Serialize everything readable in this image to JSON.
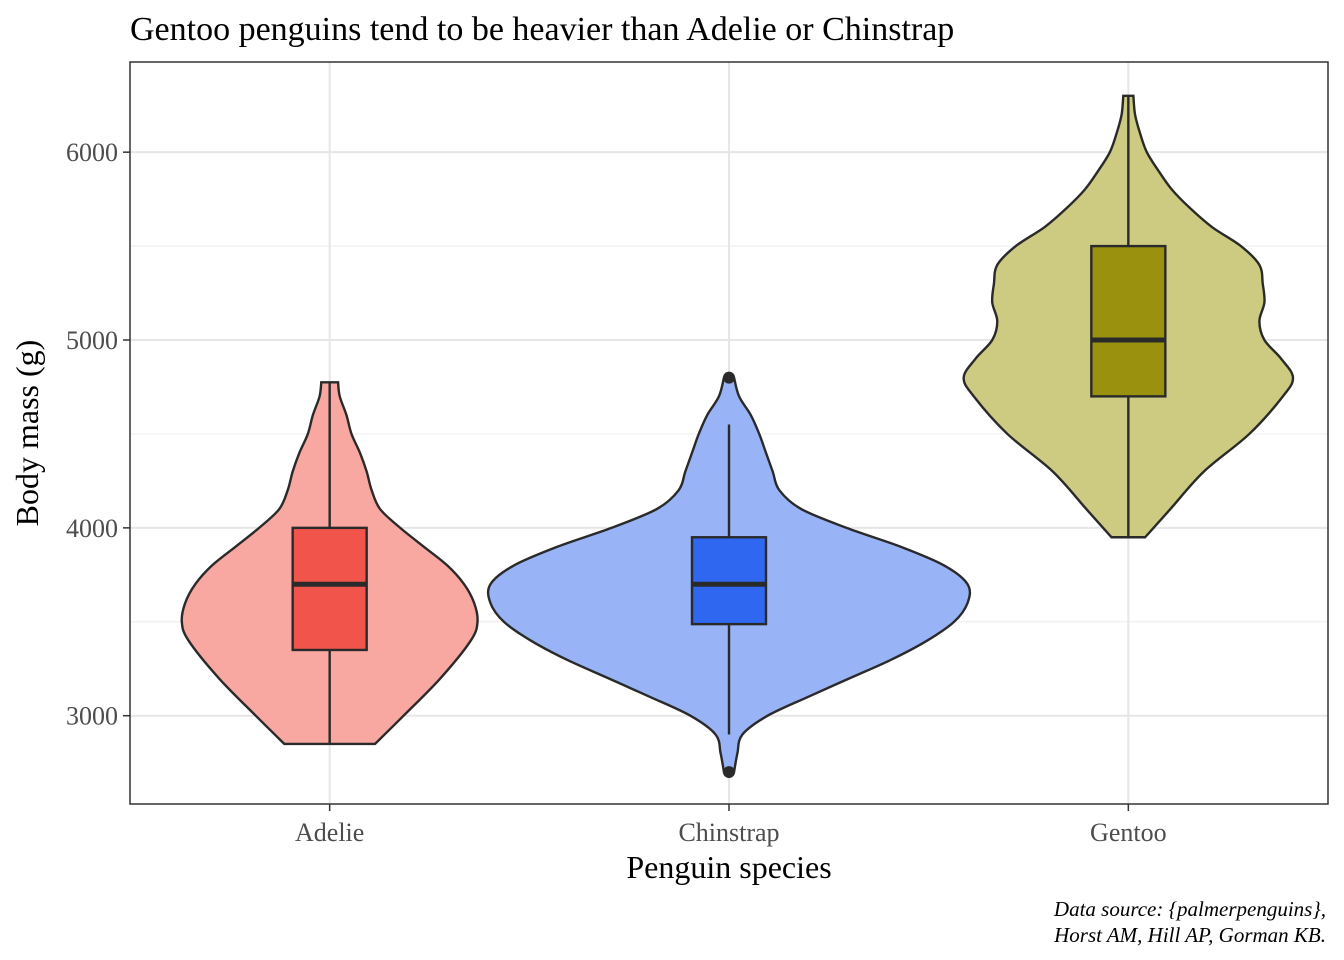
{
  "chart_data": {
    "type": "violin",
    "title": "Gentoo penguins tend to be heavier than Adelie or Chinstrap",
    "xlabel": "Penguin species",
    "ylabel": "Body mass (g)",
    "caption_lines": [
      "Data source: {palmerpenguins},",
      "Horst AM, Hill AP, Gorman KB."
    ],
    "categories": [
      "Adelie",
      "Chinstrap",
      "Gentoo"
    ],
    "ylim": [
      2530,
      6480
    ],
    "yticks": [
      3000,
      4000,
      5000,
      6000
    ],
    "ytick_labels": [
      "3000",
      "4000",
      "5000",
      "6000"
    ],
    "grid": true,
    "series": [
      {
        "name": "Adelie",
        "violin_color": "#f8a7a1",
        "box_color": "#f0544a",
        "box": {
          "lower_whisker": 2850,
          "q1": 3350,
          "median": 3700,
          "q3": 4000,
          "upper_whisker": 4775
        },
        "outliers": [],
        "density_profile": [
          [
            2850,
            0.27
          ],
          [
            3000,
            0.44
          ],
          [
            3200,
            0.66
          ],
          [
            3400,
            0.84
          ],
          [
            3500,
            0.88
          ],
          [
            3600,
            0.86
          ],
          [
            3700,
            0.8
          ],
          [
            3800,
            0.7
          ],
          [
            3900,
            0.56
          ],
          [
            4000,
            0.42
          ],
          [
            4100,
            0.3
          ],
          [
            4200,
            0.25
          ],
          [
            4300,
            0.22
          ],
          [
            4400,
            0.18
          ],
          [
            4500,
            0.13
          ],
          [
            4600,
            0.1
          ],
          [
            4700,
            0.06
          ],
          [
            4775,
            0.05
          ]
        ]
      },
      {
        "name": "Chinstrap",
        "violin_color": "#99b4f6",
        "box_color": "#2f67f0",
        "box": {
          "lower_whisker": 2900,
          "q1": 3487.5,
          "median": 3700,
          "q3": 3950,
          "upper_whisker": 4550
        },
        "outliers": [
          2700,
          4800
        ],
        "density_profile": [
          [
            2700,
            0.03
          ],
          [
            2800,
            0.05
          ],
          [
            2900,
            0.08
          ],
          [
            3000,
            0.23
          ],
          [
            3100,
            0.47
          ],
          [
            3200,
            0.72
          ],
          [
            3300,
            0.97
          ],
          [
            3400,
            1.18
          ],
          [
            3500,
            1.34
          ],
          [
            3600,
            1.42
          ],
          [
            3700,
            1.42
          ],
          [
            3800,
            1.28
          ],
          [
            3900,
            1.02
          ],
          [
            4000,
            0.7
          ],
          [
            4100,
            0.43
          ],
          [
            4200,
            0.3
          ],
          [
            4300,
            0.26
          ],
          [
            4400,
            0.22
          ],
          [
            4500,
            0.18
          ],
          [
            4600,
            0.13
          ],
          [
            4700,
            0.06
          ],
          [
            4800,
            0.03
          ]
        ]
      },
      {
        "name": "Gentoo",
        "violin_color": "#cdca82",
        "box_color": "#9a920e",
        "box": {
          "lower_whisker": 3950,
          "q1": 4700,
          "median": 5000,
          "q3": 5500,
          "upper_whisker": 6300
        },
        "outliers": [],
        "density_profile": [
          [
            3950,
            0.1
          ],
          [
            4100,
            0.25
          ],
          [
            4300,
            0.45
          ],
          [
            4500,
            0.72
          ],
          [
            4700,
            0.92
          ],
          [
            4800,
            0.98
          ],
          [
            4900,
            0.91
          ],
          [
            5000,
            0.81
          ],
          [
            5100,
            0.78
          ],
          [
            5200,
            0.81
          ],
          [
            5300,
            0.8
          ],
          [
            5400,
            0.78
          ],
          [
            5500,
            0.67
          ],
          [
            5600,
            0.5
          ],
          [
            5700,
            0.37
          ],
          [
            5800,
            0.26
          ],
          [
            5900,
            0.18
          ],
          [
            6000,
            0.11
          ],
          [
            6100,
            0.07
          ],
          [
            6200,
            0.04
          ],
          [
            6300,
            0.03
          ]
        ]
      }
    ]
  }
}
